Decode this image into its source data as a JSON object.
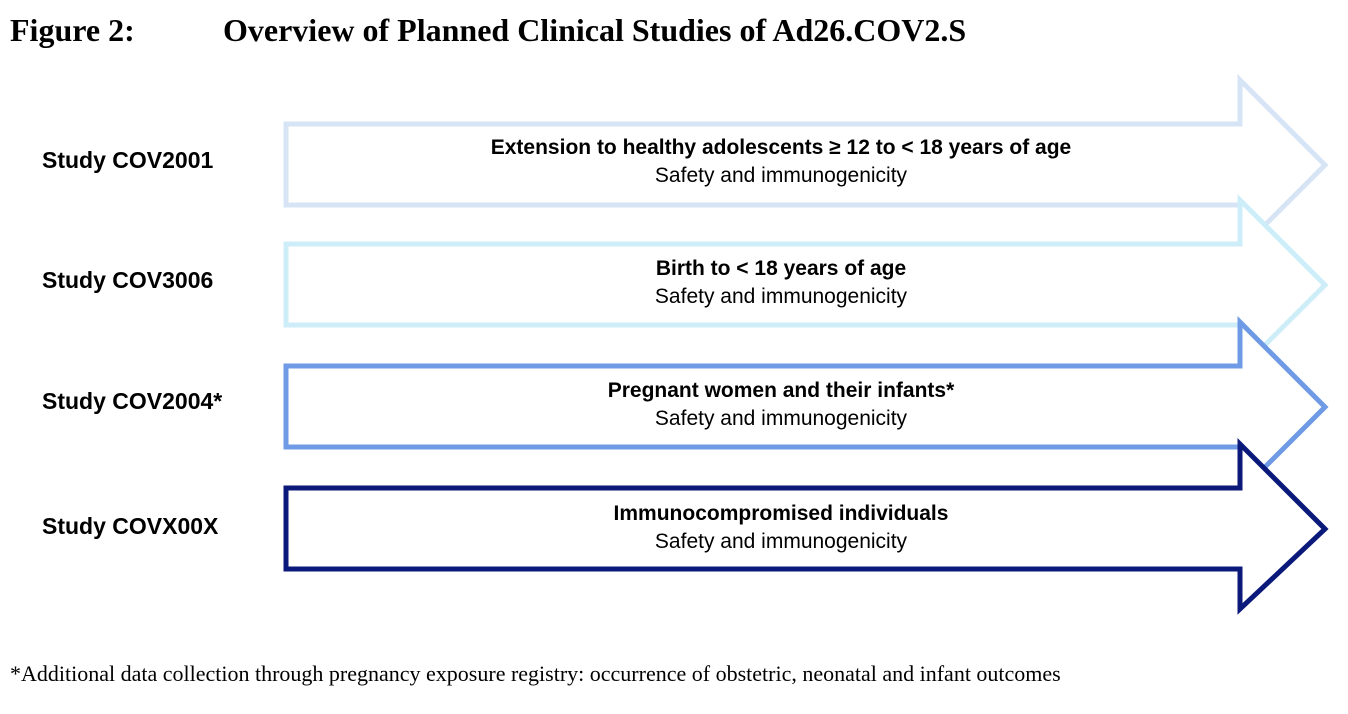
{
  "figure": {
    "number": "Figure 2:",
    "title": "Overview of Planned Clinical Studies of Ad26.COV2.S"
  },
  "studies": [
    {
      "label": "Study COV2001",
      "headline": "Extension to healthy adolescents ≥ 12 to < 18 years of age",
      "subtitle": "Safety and immunogenicity",
      "color": "#d6e4f5"
    },
    {
      "label": "Study COV3006",
      "headline": "Birth to < 18 years of age",
      "subtitle": "Safety and immunogenicity",
      "color": "#cdeef8"
    },
    {
      "label": "Study COV2004*",
      "headline": "Pregnant women and their infants*",
      "subtitle": "Safety and immunogenicity",
      "color": "#6f9be6"
    },
    {
      "label": "Study COVX00X",
      "headline": "Immunocompromised individuals",
      "subtitle": "Safety and immunogenicity",
      "color": "#0b1a7a"
    }
  ],
  "footnote": "*Additional data collection through pregnancy exposure registry: occurrence of obstetric, neonatal and infant outcomes"
}
